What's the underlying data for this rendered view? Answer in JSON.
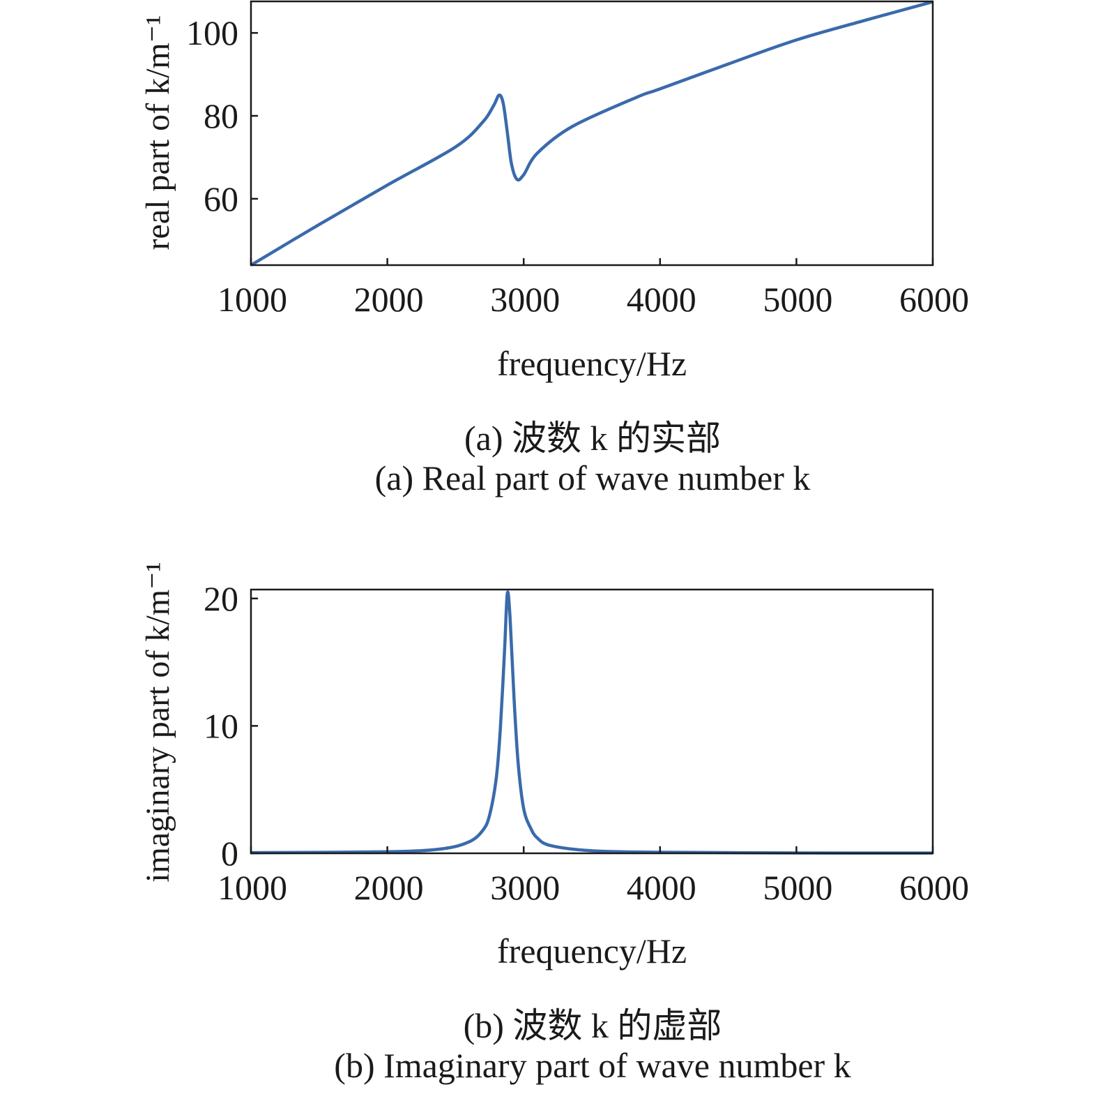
{
  "chart_data": [
    {
      "type": "line",
      "title": "",
      "xlabel": "frequency/Hz",
      "ylabel": "real part of k/m⁻¹",
      "xlim": [
        1000,
        6000
      ],
      "ylim": [
        44,
        107.6
      ],
      "xticks": [
        1000,
        2000,
        3000,
        4000,
        5000,
        6000
      ],
      "yticks": [
        60,
        80,
        100
      ],
      "grid": false,
      "series": [
        {
          "color": "#3a6aab",
          "x": [
            1000,
            1500,
            2000,
            2500,
            2700,
            2780,
            2820,
            2850,
            2880,
            2910,
            2950,
            3000,
            3100,
            3360,
            3830,
            4000,
            4500,
            5000,
            5500,
            6000
          ],
          "y": [
            44,
            53.8,
            63.3,
            72.5,
            78.5,
            82.5,
            85,
            83,
            76,
            68.5,
            64.7,
            65.8,
            71,
            77.5,
            84.5,
            86.5,
            92.5,
            98.3,
            103,
            107.5
          ]
        }
      ],
      "caption_cn": "(a) 波数 k 的实部",
      "caption_en": "(a) Real part of wave number k"
    },
    {
      "type": "line",
      "title": "",
      "xlabel": "frequency/Hz",
      "ylabel": "imaginary part of k/m⁻¹",
      "xlim": [
        1000,
        6000
      ],
      "ylim": [
        0,
        20.7
      ],
      "xticks": [
        1000,
        2000,
        3000,
        4000,
        5000,
        6000
      ],
      "yticks": [
        0,
        10,
        20
      ],
      "grid": false,
      "series": [
        {
          "color": "#3a6aab",
          "x": [
            1000,
            2000,
            2400,
            2600,
            2700,
            2750,
            2800,
            2830,
            2860,
            2880,
            2900,
            2930,
            2960,
            3000,
            3050,
            3100,
            3200,
            3500,
            4000,
            5000,
            6000
          ],
          "y": [
            0.05,
            0.12,
            0.35,
            0.9,
            1.8,
            3,
            6,
            10,
            16,
            20.4,
            18.5,
            12,
            7,
            3.5,
            2,
            1.2,
            0.6,
            0.2,
            0.08,
            0.03,
            0.02
          ]
        }
      ],
      "caption_cn": "(b) 波数 k 的虚部",
      "caption_en": "(b) Imaginary part of wave number k"
    }
  ]
}
